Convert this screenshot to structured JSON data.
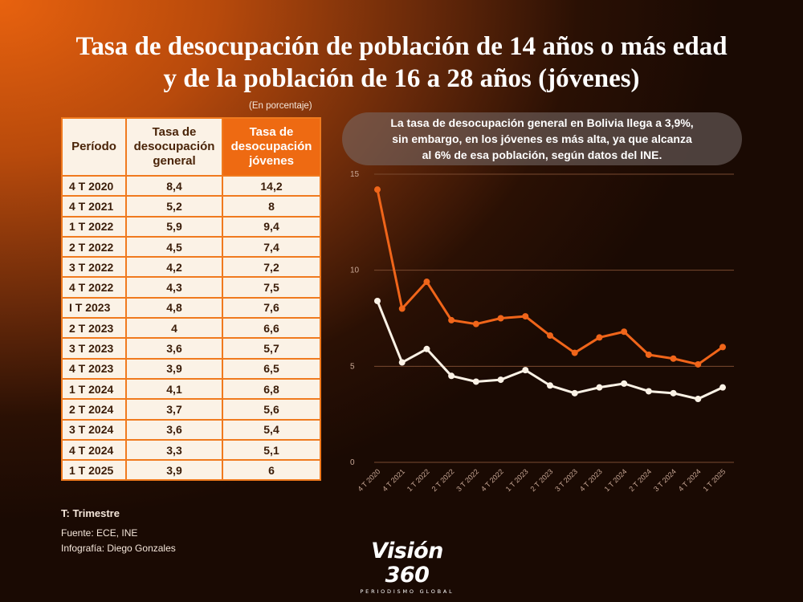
{
  "title": {
    "line1": "Tasa de desocupación de población de 14 años o más edad",
    "line2": "y de la población de 16 a 28 años (jóvenes)"
  },
  "unit_note": "(En porcentaje)",
  "table": {
    "headers": {
      "period": "Período",
      "general": [
        "Tasa de",
        "desocupación",
        "general"
      ],
      "youth": [
        "Tasa de",
        "desocupación",
        "jóvenes"
      ]
    },
    "rows": [
      {
        "period": "4 T 2020",
        "general": "8,4",
        "youth": "14,2"
      },
      {
        "period": "4 T 2021",
        "general": "5,2",
        "youth": "8"
      },
      {
        "period": "1 T 2022",
        "general": "5,9",
        "youth": "9,4"
      },
      {
        "period": "2 T 2022",
        "general": "4,5",
        "youth": "7,4"
      },
      {
        "period": "3 T 2022",
        "general": "4,2",
        "youth": "7,2"
      },
      {
        "period": "4 T 2022",
        "general": "4,3",
        "youth": "7,5"
      },
      {
        "period": "I T 2023",
        "general": "4,8",
        "youth": "7,6"
      },
      {
        "period": "2 T 2023",
        "general": "4",
        "youth": "6,6"
      },
      {
        "period": "3 T 2023",
        "general": "3,6",
        "youth": "5,7"
      },
      {
        "period": "4 T 2023",
        "general": "3,9",
        "youth": "6,5"
      },
      {
        "period": "1 T 2024",
        "general": "4,1",
        "youth": "6,8"
      },
      {
        "period": "2 T 2024",
        "general": "3,7",
        "youth": "5,6"
      },
      {
        "period": "3 T 2024",
        "general": "3,6",
        "youth": "5,4"
      },
      {
        "period": "4 T 2024",
        "general": "3,3",
        "youth": "5,1"
      },
      {
        "period": "1 T 2025",
        "general": "3,9",
        "youth": "6"
      }
    ]
  },
  "footer": {
    "legend": "T: Trimestre",
    "source": "Fuente: ECE,  INE",
    "credit": "Infografía: Diego Gonzales"
  },
  "note": [
    "La tasa de desocupación general en Bolivia llega a 3,9%,",
    "sin embargo, en los jóvenes es más alta, ya que alcanza",
    "al 6% de esa población, según datos del INE."
  ],
  "logo": {
    "name": "Visión 360",
    "tagline": "PERIODISMO GLOBAL"
  },
  "colors": {
    "youth_line": "#f0651a",
    "general_line": "#fbf2e6",
    "grid": "#7a4a30"
  },
  "chart_data": {
    "type": "line",
    "categories": [
      "4 T 2020",
      "4 T 2021",
      "1 T 2022",
      "2 T 2022",
      "3 T 2022",
      "4 T 2022",
      "1 T 2023",
      "2 T 2023",
      "3 T 2023",
      "4 T 2023",
      "1 T 2024",
      "2 T 2024",
      "3 T 2024",
      "4 T 2024",
      "1 T 2025"
    ],
    "series": [
      {
        "key": "youth",
        "values": [
          14.2,
          8,
          9.4,
          7.4,
          7.2,
          7.5,
          7.6,
          6.6,
          5.7,
          6.5,
          6.8,
          5.6,
          5.4,
          5.1,
          6
        ]
      },
      {
        "key": "general",
        "values": [
          8.4,
          5.2,
          5.9,
          4.5,
          4.2,
          4.3,
          4.8,
          4,
          3.6,
          3.9,
          4.1,
          3.7,
          3.6,
          3.3,
          3.9
        ]
      }
    ],
    "yticks": [
      0,
      5,
      10,
      15
    ],
    "ylim": [
      0,
      15
    ],
    "grid": true,
    "legend": "none"
  }
}
